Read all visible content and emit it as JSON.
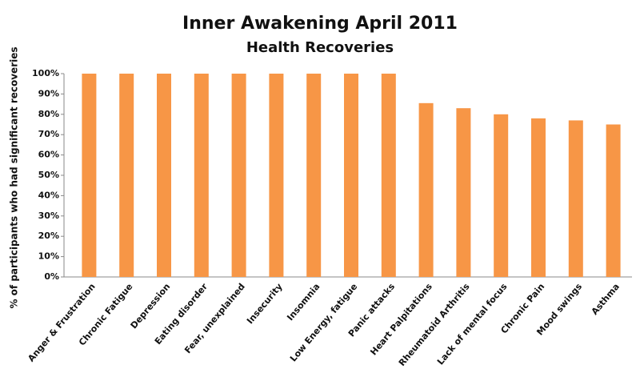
{
  "chart_data": {
    "type": "bar",
    "title": "Inner Awakening April 2011",
    "subtitle": "Health Recoveries",
    "y_label": "% of participants  who had significant recoveries",
    "categories": [
      "Anger & Frustration",
      "Chronic Fatigue",
      "Depression",
      "Eating disorder",
      "Fear, unexplained",
      "Insecurity",
      "Insomnia",
      "Low Energy, fatigue",
      "Panic attacks",
      "Heart Palpitations",
      "Rheumatoid Arthritis",
      "Lack of mental focus",
      "Chronic Pain",
      "Mood swings",
      "Asthma"
    ],
    "values": [
      100,
      100,
      100,
      100,
      100,
      100,
      100,
      100,
      100,
      85.5,
      83,
      80,
      78,
      77,
      75
    ],
    "color": "#f79646",
    "ylim": [
      0,
      100
    ],
    "yticks": [
      {
        "value": 0,
        "label": "0%"
      },
      {
        "value": 10,
        "label": "10%"
      },
      {
        "value": 20,
        "label": "20%"
      },
      {
        "value": 30,
        "label": "30%"
      },
      {
        "value": 40,
        "label": "40%"
      },
      {
        "value": 50,
        "label": "50%"
      },
      {
        "value": 60,
        "label": "60%"
      },
      {
        "value": 70,
        "label": "70%"
      },
      {
        "value": 80,
        "label": "80%"
      },
      {
        "value": 90,
        "label": "90%"
      },
      {
        "value": 100,
        "label": "100%"
      }
    ],
    "grid": false
  }
}
